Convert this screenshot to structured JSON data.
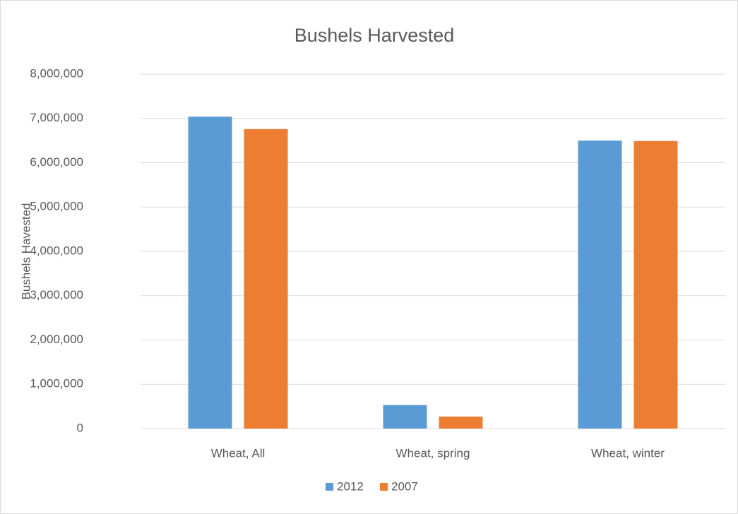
{
  "chart_data": {
    "type": "bar",
    "title": "Bushels Harvested",
    "y_label": "Bushels Havested",
    "categories": [
      "Wheat, All",
      "Wheat, spring",
      "Wheat, winter"
    ],
    "series": [
      {
        "name": "2012",
        "color": "#5b9bd5",
        "values": [
          7040000,
          530000,
          6500000
        ]
      },
      {
        "name": "2007",
        "color": "#ed7d31",
        "values": [
          6760000,
          270000,
          6490000
        ]
      }
    ],
    "ylim": [
      0,
      8000000
    ],
    "yticks": [
      0,
      {
        "value": 1000000,
        "label": "1,000,000"
      },
      {
        "value": 2000000,
        "label": "2,000,000"
      },
      {
        "value": 3000000,
        "label": "3,000,000"
      },
      {
        "value": 4000000,
        "label": "4,000,000"
      },
      {
        "value": 5000000,
        "label": "5,000,000"
      },
      {
        "value": 6000000,
        "label": "6,000,000"
      },
      {
        "value": 7000000,
        "label": "7,000,000"
      },
      {
        "value": 8000000,
        "label": "8,000,000"
      }
    ],
    "grid": true,
    "legend": "bottom"
  }
}
